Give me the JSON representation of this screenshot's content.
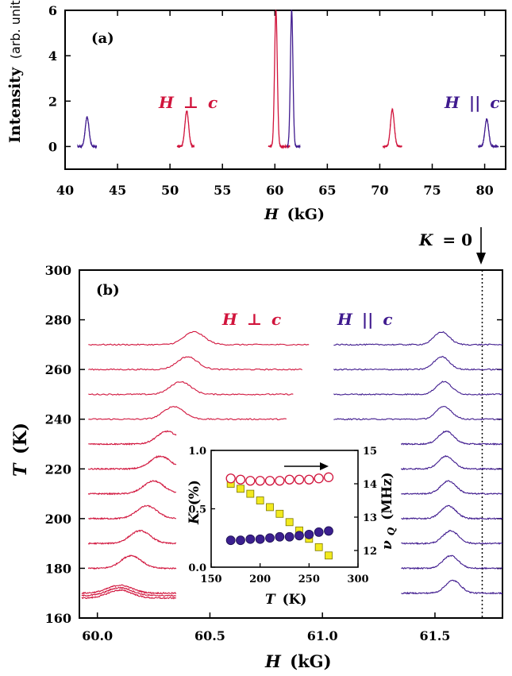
{
  "colors": {
    "perp": "#d1143c",
    "par": "#3f1a8e",
    "dot_fill": "#3b1f8f",
    "square_fill": "#f2ea1f",
    "square_stroke": "#7a7600",
    "open_circle": "#d1143c"
  },
  "labels": {
    "a_tag": "(a)",
    "b_tag": "(b)",
    "a_ylabel_main": "Intensity",
    "a_ylabel_unit": "(arb. units)",
    "a_xlabel_var": "H",
    "a_xlabel_unit": "(kG)",
    "b_ylabel_var": "T",
    "b_ylabel_unit": "(K)",
    "b_xlabel_var": "H",
    "b_xlabel_unit": "(kG)",
    "perp_H": "H",
    "perp_sym": "⊥",
    "perp_c": "c",
    "par_H": "H",
    "par_sym": "||",
    "par_c": "c",
    "k0_K": "K",
    "k0_rest": "= 0",
    "inset_ylabel_K": "K",
    "inset_ylabel_unit": "(%)",
    "inset_xlabel_var": "T",
    "inset_xlabel_unit": "(K)",
    "inset_y2label_nu": "ν",
    "inset_y2label_sub": "Q",
    "inset_y2label_unit": "(MHz)"
  },
  "chart_data": [
    {
      "panel": "a",
      "type": "line",
      "xlabel": "H (kG)",
      "ylabel": "Intensity (arb. units)",
      "xlim": [
        40,
        82
      ],
      "ylim": [
        -1,
        6
      ],
      "xticks": [
        "40",
        "45",
        "50",
        "55",
        "60",
        "65",
        "70",
        "75",
        "80"
      ],
      "yticks": [
        "0",
        "2",
        "4",
        "6"
      ],
      "series": [
        {
          "name": "H ⊥ c",
          "peaks": [
            {
              "center": 51.6,
              "height": 1.55,
              "width": 0.18
            },
            {
              "center": 60.1,
              "height": 6.0,
              "width": 0.13
            },
            {
              "center": 71.2,
              "height": 1.62,
              "width": 0.18
            }
          ],
          "segments": [
            [
              50.7,
              52.3
            ],
            [
              59.4,
              61.4
            ],
            [
              70.3,
              72.1
            ]
          ]
        },
        {
          "name": "H || c",
          "peaks": [
            {
              "center": 42.1,
              "height": 1.3,
              "width": 0.18
            },
            {
              "center": 61.6,
              "height": 6.0,
              "width": 0.12
            },
            {
              "center": 80.2,
              "height": 1.2,
              "width": 0.18
            }
          ],
          "segments": [
            [
              41.2,
              43.0
            ],
            [
              61.2,
              62.4
            ],
            [
              79.4,
              81.3
            ]
          ]
        }
      ]
    },
    {
      "panel": "b",
      "type": "line",
      "xlabel": "H (kG)",
      "ylabel": "T (K)",
      "xlim": [
        59.92,
        61.8
      ],
      "ylim": [
        160,
        300
      ],
      "xticks": [
        "60.0",
        "60.5",
        "61.0",
        "61.5"
      ],
      "yticks": [
        "160",
        "180",
        "200",
        "220",
        "240",
        "260",
        "280",
        "300"
      ],
      "k_zero_line": 61.71,
      "series": [
        {
          "name": "H ⊥ c",
          "traces": [
            {
              "T": 270,
              "center": 60.43,
              "amp": 8,
              "start": 59.96,
              "end": 60.94
            },
            {
              "T": 260,
              "center": 60.4,
              "amp": 8,
              "start": 59.96,
              "end": 60.91
            },
            {
              "T": 250,
              "center": 60.37,
              "amp": 8,
              "start": 59.96,
              "end": 60.87
            },
            {
              "T": 240,
              "center": 60.34,
              "amp": 8,
              "start": 59.96,
              "end": 60.84
            },
            {
              "T": 230,
              "center": 60.31,
              "amp": 8,
              "start": 59.96,
              "end": 60.35
            },
            {
              "T": 220,
              "center": 60.28,
              "amp": 8,
              "start": 59.96,
              "end": 60.35
            },
            {
              "T": 210,
              "center": 60.25,
              "amp": 8,
              "start": 59.96,
              "end": 60.35
            },
            {
              "T": 200,
              "center": 60.22,
              "amp": 8,
              "start": 59.96,
              "end": 60.35
            },
            {
              "T": 190,
              "center": 60.19,
              "amp": 8,
              "start": 59.96,
              "end": 60.35
            },
            {
              "T": 180,
              "center": 60.15,
              "amp": 8,
              "start": 59.96,
              "end": 60.35
            },
            {
              "T": 170,
              "center": 60.1,
              "amp": 5,
              "start": 59.93,
              "end": 60.35
            },
            {
              "T": 169,
              "center": 60.1,
              "amp": 5,
              "start": 59.93,
              "end": 60.35
            },
            {
              "T": 168,
              "center": 60.1,
              "amp": 5,
              "start": 59.93,
              "end": 60.35
            }
          ]
        },
        {
          "name": "H || c",
          "traces": [
            {
              "T": 270,
              "center": 61.53,
              "amp": 8,
              "start": 61.05,
              "end": 61.8
            },
            {
              "T": 260,
              "center": 61.53,
              "amp": 8,
              "start": 61.05,
              "end": 61.8
            },
            {
              "T": 250,
              "center": 61.54,
              "amp": 8,
              "start": 61.05,
              "end": 61.8
            },
            {
              "T": 240,
              "center": 61.54,
              "amp": 8,
              "start": 61.05,
              "end": 61.8
            },
            {
              "T": 230,
              "center": 61.55,
              "amp": 8,
              "start": 61.35,
              "end": 61.8
            },
            {
              "T": 220,
              "center": 61.55,
              "amp": 8,
              "start": 61.35,
              "end": 61.8
            },
            {
              "T": 210,
              "center": 61.56,
              "amp": 8,
              "start": 61.35,
              "end": 61.8
            },
            {
              "T": 200,
              "center": 61.56,
              "amp": 8,
              "start": 61.35,
              "end": 61.8
            },
            {
              "T": 190,
              "center": 61.57,
              "amp": 8,
              "start": 61.35,
              "end": 61.8
            },
            {
              "T": 180,
              "center": 61.57,
              "amp": 8,
              "start": 61.35,
              "end": 61.8
            },
            {
              "T": 170,
              "center": 61.58,
              "amp": 8,
              "start": 61.35,
              "end": 61.8
            }
          ]
        }
      ]
    },
    {
      "panel": "inset",
      "type": "scatter",
      "xlabel": "T (K)",
      "ylabel": "K (%)",
      "y2label": "νQ (MHz)",
      "xlim": [
        150,
        300
      ],
      "ylim": [
        0,
        1.0
      ],
      "y2lim": [
        11.5,
        15
      ],
      "xticks": [
        "150",
        "200",
        "250",
        "300"
      ],
      "yticks": [
        "0.0",
        "0.5",
        "1.0"
      ],
      "y2ticks": [
        "12",
        "13",
        "14",
        "15"
      ],
      "series": [
        {
          "name": "K, H ⊥ c (open circles)",
          "axis": "left",
          "marker": "open-circle",
          "x": [
            170,
            180,
            190,
            200,
            210,
            220,
            230,
            240,
            250,
            260,
            270
          ],
          "y": [
            0.76,
            0.75,
            0.74,
            0.74,
            0.74,
            0.74,
            0.75,
            0.75,
            0.75,
            0.76,
            0.77
          ]
        },
        {
          "name": "K, H || c (filled circles)",
          "axis": "left",
          "marker": "filled-circle",
          "x": [
            170,
            180,
            190,
            200,
            210,
            220,
            230,
            240,
            250,
            260,
            270
          ],
          "y": [
            0.23,
            0.23,
            0.24,
            0.24,
            0.25,
            0.26,
            0.26,
            0.27,
            0.28,
            0.3,
            0.31
          ]
        },
        {
          "name": "νQ (squares)",
          "axis": "right",
          "marker": "square",
          "x": [
            170,
            180,
            190,
            200,
            210,
            220,
            230,
            240,
            250,
            260,
            270
          ],
          "y": [
            14.0,
            13.85,
            13.7,
            13.5,
            13.3,
            13.1,
            12.85,
            12.6,
            12.35,
            12.1,
            11.85
          ]
        }
      ]
    }
  ]
}
